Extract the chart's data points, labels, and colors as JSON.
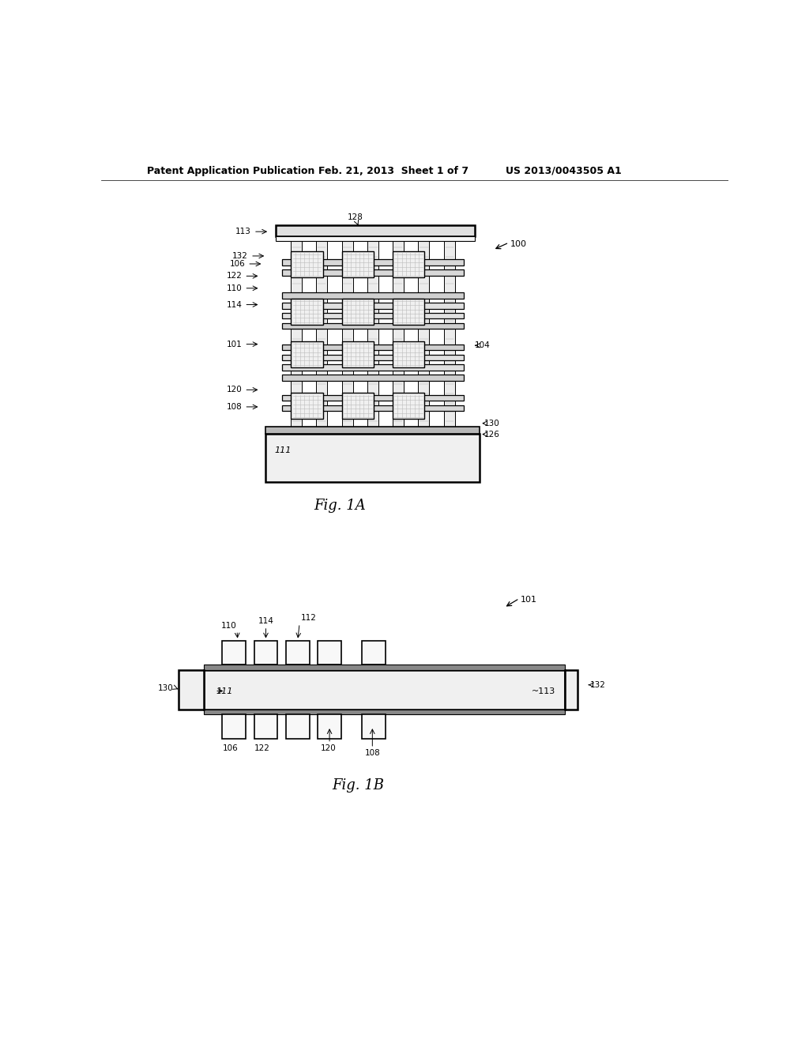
{
  "bg_color": "#ffffff",
  "line_color": "#000000",
  "header_text_left": "Patent Application Publication",
  "header_text_mid": "Feb. 21, 2013  Sheet 1 of 7",
  "header_text_right": "US 2013/0043505 A1",
  "fig1a_label": "Fig. 1A",
  "fig1b_label": "Fig. 1B"
}
